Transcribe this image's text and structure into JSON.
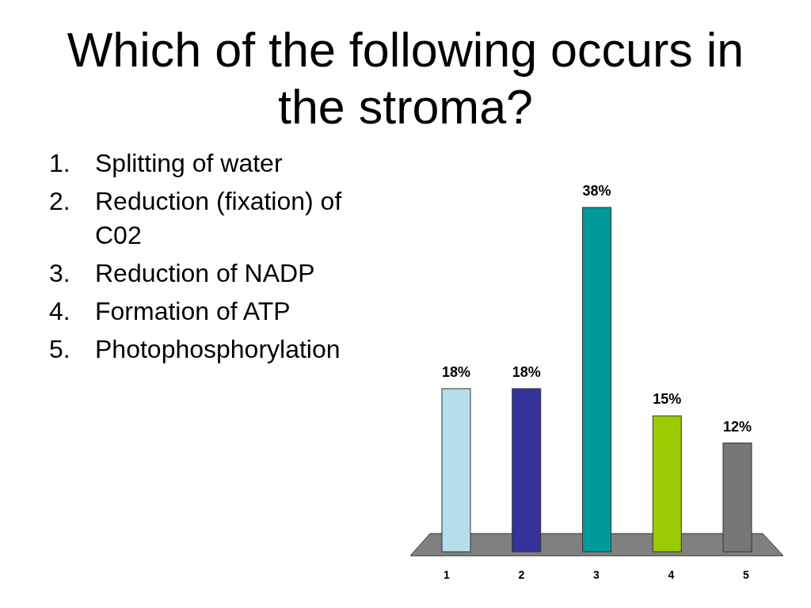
{
  "chart_data": {
    "type": "bar",
    "title": "Which of the following occurs in the stroma?",
    "categories": [
      "1",
      "2",
      "3",
      "4",
      "5"
    ],
    "values": [
      18,
      18,
      38,
      15,
      12
    ],
    "colors": [
      "#b7dde8",
      "#333399",
      "#009999",
      "#99cc00",
      "#777777"
    ],
    "value_labels": [
      "18%",
      "18%",
      "38%",
      "15%",
      "12%"
    ],
    "annotations": [
      "1. Splitting of water",
      "2. Reduction (fixation) of C02",
      "3. Reduction of NADP",
      "4. Formation of ATP",
      "5. Photophosphorylation"
    ]
  }
}
